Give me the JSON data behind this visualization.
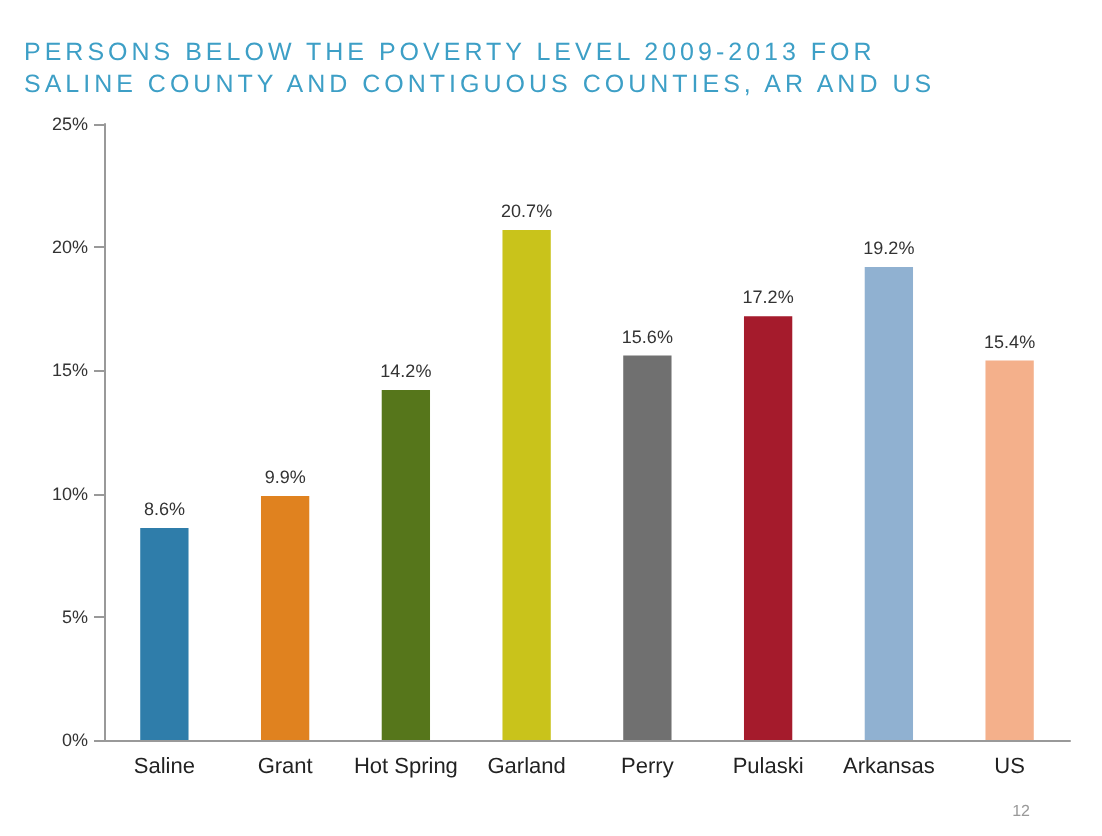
{
  "chart_data": {
    "type": "bar",
    "title": "PERSONS BELOW THE POVERTY LEVEL 2009-2013 FOR SALINE COUNTY AND CONTIGUOUS COUNTIES, AR AND US",
    "categories": [
      "Saline",
      "Grant",
      "Hot Spring",
      "Garland",
      "Perry",
      "Pulaski",
      "Arkansas",
      "US"
    ],
    "values": [
      8.6,
      9.9,
      14.2,
      20.7,
      15.6,
      17.2,
      19.2,
      15.4
    ],
    "value_labels": [
      "8.6%",
      "9.9%",
      "14.2%",
      "20.7%",
      "15.6%",
      "17.2%",
      "19.2%",
      "15.4%"
    ],
    "colors": [
      "#2f7daa",
      "#e0821f",
      "#56761b",
      "#c9c31b",
      "#707070",
      "#a51b2c",
      "#90b1d1",
      "#f4b08b"
    ],
    "ylim": [
      0,
      25
    ],
    "yticks": [
      {
        "value": 0,
        "label": "0%"
      },
      {
        "value": 5,
        "label": "5%"
      },
      {
        "value": 10,
        "label": "10%"
      },
      {
        "value": 15,
        "label": "15%"
      },
      {
        "value": 20,
        "label": "20%"
      },
      {
        "value": 25,
        "label": "25%"
      }
    ],
    "grid": false,
    "annotations": [
      "12"
    ]
  }
}
